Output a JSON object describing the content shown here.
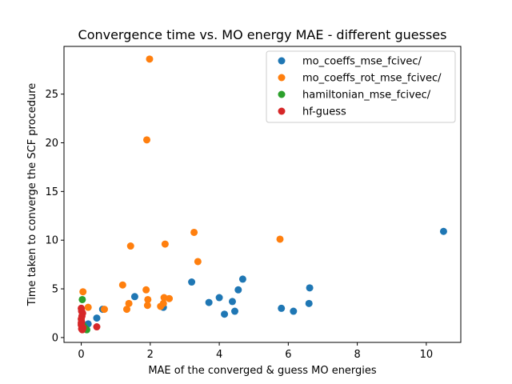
{
  "chart_data": {
    "type": "scatter",
    "title": "Convergence time vs. MO energy MAE - different guesses",
    "xlabel": "MAE of the converged & guess MO energies",
    "ylabel": "Time taken to converge the SCF procedure",
    "xlim": [
      -0.5,
      11.0
    ],
    "ylim": [
      -0.5,
      29.9
    ],
    "xticks": [
      0,
      2,
      4,
      6,
      8,
      10
    ],
    "yticks": [
      0,
      5,
      10,
      15,
      20,
      25
    ],
    "grid": false,
    "legend_position": "top-right",
    "series": [
      {
        "name": "mo_coeffs_mse_fcivec/",
        "color": "#1f77b4",
        "points": [
          [
            0.08,
            0.9
          ],
          [
            0.15,
            1.2
          ],
          [
            0.2,
            1.4
          ],
          [
            0.45,
            2.0
          ],
          [
            0.62,
            2.9
          ],
          [
            1.55,
            4.2
          ],
          [
            2.38,
            3.1
          ],
          [
            3.2,
            5.7
          ],
          [
            3.7,
            3.6
          ],
          [
            4.0,
            4.1
          ],
          [
            4.15,
            2.4
          ],
          [
            4.38,
            3.7
          ],
          [
            4.45,
            2.7
          ],
          [
            4.55,
            4.9
          ],
          [
            4.68,
            6.0
          ],
          [
            5.8,
            3.0
          ],
          [
            6.15,
            2.7
          ],
          [
            6.6,
            3.5
          ],
          [
            6.62,
            5.1
          ],
          [
            10.5,
            10.9
          ]
        ]
      },
      {
        "name": "mo_coeffs_rot_mse_fcivec/",
        "color": "#ff7f0e",
        "points": [
          [
            0.05,
            4.7
          ],
          [
            0.2,
            3.1
          ],
          [
            0.67,
            2.9
          ],
          [
            1.2,
            5.4
          ],
          [
            1.32,
            2.9
          ],
          [
            1.38,
            3.5
          ],
          [
            1.43,
            9.4
          ],
          [
            1.88,
            4.9
          ],
          [
            1.9,
            20.3
          ],
          [
            1.92,
            3.3
          ],
          [
            1.93,
            3.9
          ],
          [
            1.98,
            28.6
          ],
          [
            2.3,
            3.2
          ],
          [
            2.38,
            3.5
          ],
          [
            2.4,
            4.1
          ],
          [
            2.43,
            9.6
          ],
          [
            2.55,
            4.0
          ],
          [
            3.27,
            10.8
          ],
          [
            3.38,
            7.8
          ],
          [
            5.76,
            10.1
          ]
        ]
      },
      {
        "name": "hamiltonian_mse_fcivec/",
        "color": "#2ca02c",
        "points": [
          [
            0.03,
            3.9
          ],
          [
            0.06,
            1.2
          ],
          [
            0.1,
            1.0
          ],
          [
            0.16,
            0.8
          ]
        ]
      },
      {
        "name": "hf-guess",
        "color": "#d62728",
        "points": [
          [
            0.0,
            3.0
          ],
          [
            0.01,
            2.7
          ],
          [
            0.02,
            2.2
          ],
          [
            0.0,
            1.9
          ],
          [
            0.01,
            1.6
          ],
          [
            0.0,
            1.3
          ],
          [
            0.02,
            1.1
          ],
          [
            0.01,
            0.9
          ],
          [
            0.03,
            0.8
          ],
          [
            0.05,
            1.0
          ],
          [
            0.04,
            2.5
          ],
          [
            0.0,
            1.5
          ],
          [
            0.45,
            1.1
          ]
        ]
      }
    ]
  }
}
